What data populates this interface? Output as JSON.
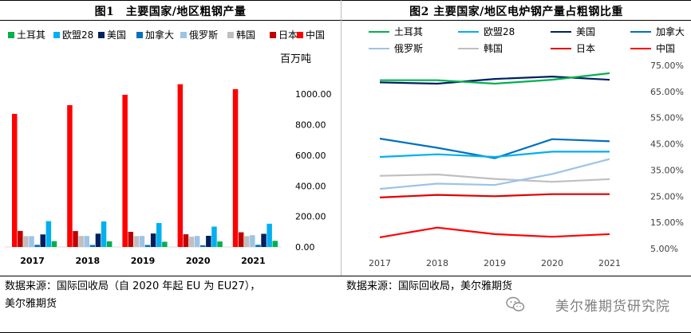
{
  "left_title": "图1　主要国家/地区粗钢产量",
  "right_title": "图2 主要国家/地区电炉钢产量占粗钢比重",
  "left_source": "数据来源：国际回收局（自 2020 年起 EU 为 EU27），\n美尔雅期货",
  "right_source": "数据来源：国际回收局，美尔雅期货",
  "watermark": "美尔雅期货研究院",
  "chart_data": [
    {
      "type": "bar",
      "title": "图1　主要国家/地区粗钢产量",
      "ylabel": "百万吨",
      "ylim": [
        0,
        1100
      ],
      "yticks": [
        0,
        200,
        400,
        600,
        800,
        1000
      ],
      "ytick_labels": [
        "0.00",
        "200.00",
        "400.00",
        "600.00",
        "800.00",
        "1000.00"
      ],
      "categories": [
        "2017",
        "2018",
        "2019",
        "2020",
        "2021"
      ],
      "series": [
        {
          "name": "中国",
          "color": "#ff0000",
          "values": [
            871,
            928,
            996,
            1065,
            1033
          ]
        },
        {
          "name": "日本",
          "color": "#c00000",
          "values": [
            105,
            104,
            99,
            83,
            96
          ]
        },
        {
          "name": "韩国",
          "color": "#bfbfbf",
          "values": [
            71,
            72,
            71,
            67,
            71
          ]
        },
        {
          "name": "俄罗斯",
          "color": "#9dc3e6",
          "values": [
            71,
            72,
            72,
            72,
            77
          ]
        },
        {
          "name": "加拿大",
          "color": "#0070c0",
          "values": [
            14,
            13,
            13,
            11,
            14
          ]
        },
        {
          "name": "美国",
          "color": "#002060",
          "values": [
            82,
            87,
            88,
            73,
            86
          ]
        },
        {
          "name": "欧盟28",
          "color": "#00b0f0",
          "values": [
            169,
            167,
            157,
            133,
            152
          ]
        },
        {
          "name": "土耳其",
          "color": "#00b050",
          "values": [
            38,
            37,
            34,
            36,
            40
          ]
        }
      ],
      "legend": [
        "土耳其",
        "欧盟28",
        "美国",
        "加拿大",
        "俄罗斯",
        "韩国",
        "日本",
        "中国"
      ]
    },
    {
      "type": "line",
      "title": "图2 主要国家/地区电炉钢产量占粗钢比重",
      "x": [
        "2017",
        "2018",
        "2019",
        "2020",
        "2021"
      ],
      "ylim": [
        5,
        75
      ],
      "yticks": [
        5,
        15,
        25,
        35,
        45,
        55,
        65,
        75
      ],
      "ytick_labels": [
        "5.00%",
        "15.00%",
        "25.00%",
        "35.00%",
        "45.00%",
        "55.00%",
        "65.00%",
        "75.00%"
      ],
      "series": [
        {
          "name": "土耳其",
          "color": "#00b050",
          "values": [
            69.3,
            69.3,
            68.0,
            69.5,
            72.0
          ]
        },
        {
          "name": "欧盟28",
          "color": "#00b0f0",
          "values": [
            40.0,
            41.0,
            40.0,
            42.0,
            42.0
          ]
        },
        {
          "name": "美国",
          "color": "#002060",
          "values": [
            68.5,
            68.0,
            69.8,
            70.7,
            69.5
          ]
        },
        {
          "name": "加拿大",
          "color": "#0070c0",
          "values": [
            47.0,
            43.5,
            39.5,
            46.8,
            46.0
          ]
        },
        {
          "name": "俄罗斯",
          "color": "#9dc3e6",
          "values": [
            27.8,
            29.8,
            29.3,
            33.5,
            39.2
          ]
        },
        {
          "name": "韩国",
          "color": "#bfbfbf",
          "values": [
            32.8,
            33.3,
            31.6,
            30.5,
            31.5
          ]
        },
        {
          "name": "日本",
          "color": "#e00000",
          "values": [
            24.5,
            25.5,
            25.0,
            25.8,
            25.8
          ]
        },
        {
          "name": "中国",
          "color": "#ff0000",
          "values": [
            9.3,
            13.0,
            10.5,
            9.5,
            10.5
          ]
        }
      ],
      "legend": [
        "土耳其",
        "欧盟28",
        "美国",
        "加拿大",
        "俄罗斯",
        "韩国",
        "日本",
        "中国"
      ]
    }
  ]
}
